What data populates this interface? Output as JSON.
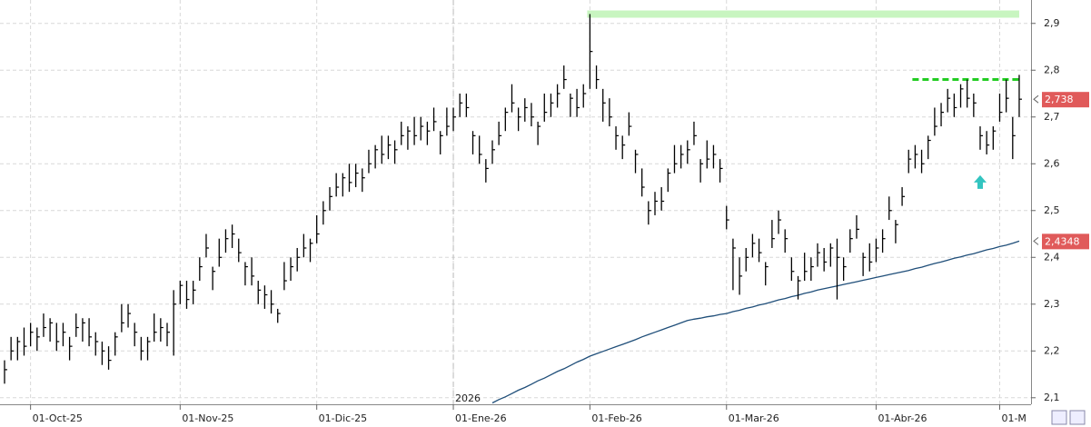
{
  "chart_data": {
    "type": "ohlc",
    "bar_color": "#000000",
    "grid": true,
    "ylim": [
      2.086,
      2.95
    ],
    "yticks": [
      {
        "value": 2.1,
        "label": "2,1"
      },
      {
        "value": 2.2,
        "label": "2,2"
      },
      {
        "value": 2.3,
        "label": "2,3"
      },
      {
        "value": 2.4,
        "label": "2,4"
      },
      {
        "value": 2.5,
        "label": "2,5"
      },
      {
        "value": 2.6,
        "label": "2,6"
      },
      {
        "value": 2.7,
        "label": "2,7"
      },
      {
        "value": 2.8,
        "label": "2,8"
      },
      {
        "value": 2.9,
        "label": "2,9"
      }
    ],
    "xticks": [
      {
        "value": 4,
        "label": "01-Oct-25"
      },
      {
        "value": 27,
        "label": "01-Nov-25"
      },
      {
        "value": 48,
        "label": "01-Dic-25"
      },
      {
        "value": 69,
        "label": "01-Ene-26"
      },
      {
        "value": 90,
        "label": "01-Feb-26"
      },
      {
        "value": 111,
        "label": "01-Mar-26"
      },
      {
        "value": 134,
        "label": "01-Abr-26"
      },
      {
        "value": 153,
        "label": "01-M"
      }
    ],
    "year_marker": {
      "value": 69,
      "label": "2026"
    },
    "high": [
      2.18,
      2.23,
      2.23,
      2.25,
      2.26,
      2.25,
      2.28,
      2.27,
      2.26,
      2.26,
      2.23,
      2.28,
      2.27,
      2.27,
      2.24,
      2.22,
      2.21,
      2.24,
      2.3,
      2.3,
      2.26,
      2.23,
      2.23,
      2.28,
      2.27,
      2.26,
      2.33,
      2.35,
      2.35,
      2.35,
      2.4,
      2.45,
      2.38,
      2.44,
      2.46,
      2.47,
      2.44,
      2.39,
      2.4,
      2.35,
      2.34,
      2.33,
      2.29,
      2.39,
      2.4,
      2.42,
      2.45,
      2.44,
      2.49,
      2.52,
      2.55,
      2.58,
      2.58,
      2.6,
      2.6,
      2.59,
      2.63,
      2.64,
      2.66,
      2.66,
      2.65,
      2.69,
      2.68,
      2.7,
      2.7,
      2.69,
      2.72,
      2.67,
      2.72,
      2.72,
      2.75,
      2.75,
      2.67,
      2.66,
      2.61,
      2.65,
      2.69,
      2.72,
      2.77,
      2.72,
      2.74,
      2.73,
      2.69,
      2.75,
      2.75,
      2.77,
      2.81,
      2.75,
      2.76,
      2.77,
      2.92,
      2.81,
      2.76,
      2.74,
      2.68,
      2.66,
      2.71,
      2.63,
      2.59,
      2.52,
      2.54,
      2.55,
      2.59,
      2.64,
      2.64,
      2.65,
      2.69,
      2.61,
      2.65,
      2.64,
      2.61,
      2.51,
      2.44,
      2.4,
      2.42,
      2.45,
      2.44,
      2.39,
      2.48,
      2.5,
      2.46,
      2.4,
      2.36,
      2.41,
      2.4,
      2.43,
      2.42,
      2.43,
      2.44,
      2.4,
      2.46,
      2.49,
      2.41,
      2.43,
      2.44,
      2.46,
      2.53,
      2.48,
      2.55,
      2.63,
      2.64,
      2.63,
      2.66,
      2.72,
      2.73,
      2.76,
      2.75,
      2.77,
      2.78,
      2.75,
      2.68,
      2.67,
      2.68,
      2.75,
      2.78,
      2.7,
      2.79
    ],
    "low": [
      2.13,
      2.18,
      2.18,
      2.19,
      2.21,
      2.2,
      2.23,
      2.22,
      2.2,
      2.21,
      2.18,
      2.23,
      2.22,
      2.21,
      2.19,
      2.17,
      2.16,
      2.19,
      2.24,
      2.25,
      2.21,
      2.18,
      2.18,
      2.22,
      2.22,
      2.21,
      2.19,
      2.3,
      2.29,
      2.3,
      2.35,
      2.4,
      2.33,
      2.38,
      2.41,
      2.42,
      2.39,
      2.34,
      2.34,
      2.3,
      2.29,
      2.28,
      2.26,
      2.33,
      2.35,
      2.37,
      2.4,
      2.39,
      2.43,
      2.47,
      2.5,
      2.53,
      2.53,
      2.54,
      2.55,
      2.54,
      2.58,
      2.59,
      2.6,
      2.61,
      2.6,
      2.64,
      2.63,
      2.64,
      2.65,
      2.64,
      2.67,
      2.62,
      2.66,
      2.67,
      2.7,
      2.7,
      2.62,
      2.6,
      2.56,
      2.6,
      2.64,
      2.67,
      2.71,
      2.67,
      2.69,
      2.68,
      2.64,
      2.69,
      2.7,
      2.72,
      2.76,
      2.7,
      2.7,
      2.72,
      2.76,
      2.76,
      2.69,
      2.68,
      2.63,
      2.61,
      2.66,
      2.58,
      2.53,
      2.47,
      2.49,
      2.5,
      2.54,
      2.58,
      2.59,
      2.6,
      2.64,
      2.56,
      2.59,
      2.59,
      2.56,
      2.46,
      2.33,
      2.32,
      2.37,
      2.4,
      2.39,
      2.34,
      2.42,
      2.45,
      2.41,
      2.35,
      2.31,
      2.35,
      2.35,
      2.38,
      2.37,
      2.38,
      2.31,
      2.35,
      2.41,
      2.44,
      2.36,
      2.37,
      2.39,
      2.41,
      2.48,
      2.43,
      2.51,
      2.58,
      2.59,
      2.58,
      2.61,
      2.66,
      2.68,
      2.71,
      2.7,
      2.72,
      2.72,
      2.7,
      2.63,
      2.62,
      2.63,
      2.69,
      2.71,
      2.61,
      2.7
    ],
    "close": [
      2.16,
      2.2,
      2.22,
      2.21,
      2.24,
      2.23,
      2.25,
      2.26,
      2.22,
      2.24,
      2.21,
      2.25,
      2.26,
      2.23,
      2.22,
      2.2,
      2.18,
      2.23,
      2.26,
      2.28,
      2.24,
      2.2,
      2.22,
      2.24,
      2.25,
      2.24,
      2.3,
      2.34,
      2.31,
      2.33,
      2.38,
      2.42,
      2.37,
      2.4,
      2.44,
      2.45,
      2.41,
      2.38,
      2.36,
      2.33,
      2.32,
      2.3,
      2.28,
      2.35,
      2.38,
      2.4,
      2.42,
      2.43,
      2.45,
      2.5,
      2.53,
      2.55,
      2.57,
      2.56,
      2.58,
      2.57,
      2.6,
      2.63,
      2.62,
      2.64,
      2.63,
      2.66,
      2.67,
      2.66,
      2.68,
      2.67,
      2.69,
      2.66,
      2.68,
      2.7,
      2.73,
      2.72,
      2.66,
      2.62,
      2.59,
      2.63,
      2.66,
      2.71,
      2.73,
      2.7,
      2.72,
      2.7,
      2.68,
      2.71,
      2.73,
      2.75,
      2.78,
      2.74,
      2.72,
      2.75,
      2.84,
      2.78,
      2.73,
      2.7,
      2.66,
      2.64,
      2.68,
      2.62,
      2.55,
      2.5,
      2.52,
      2.52,
      2.58,
      2.6,
      2.62,
      2.63,
      2.66,
      2.6,
      2.61,
      2.62,
      2.59,
      2.48,
      2.42,
      2.36,
      2.4,
      2.43,
      2.41,
      2.38,
      2.44,
      2.48,
      2.44,
      2.37,
      2.35,
      2.37,
      2.38,
      2.41,
      2.39,
      2.42,
      2.4,
      2.38,
      2.44,
      2.46,
      2.4,
      2.39,
      2.42,
      2.44,
      2.5,
      2.47,
      2.53,
      2.61,
      2.62,
      2.6,
      2.65,
      2.68,
      2.71,
      2.74,
      2.72,
      2.76,
      2.74,
      2.73,
      2.66,
      2.64,
      2.67,
      2.71,
      2.74,
      2.66,
      2.738
    ],
    "moving_average": {
      "color": "#1f4e79",
      "values": [
        null,
        null,
        null,
        null,
        null,
        null,
        null,
        null,
        null,
        null,
        null,
        null,
        null,
        null,
        null,
        null,
        null,
        null,
        null,
        null,
        null,
        null,
        null,
        null,
        null,
        null,
        null,
        null,
        null,
        null,
        null,
        null,
        null,
        null,
        null,
        null,
        null,
        null,
        null,
        null,
        null,
        null,
        null,
        null,
        null,
        null,
        null,
        null,
        null,
        null,
        null,
        null,
        null,
        null,
        null,
        null,
        null,
        null,
        null,
        null,
        null,
        null,
        null,
        null,
        null,
        null,
        null,
        null,
        null,
        null,
        null,
        null,
        null,
        null,
        null,
        2.089,
        2.096,
        2.102,
        2.109,
        2.116,
        2.122,
        2.129,
        2.136,
        2.142,
        2.149,
        2.156,
        2.162,
        2.169,
        2.176,
        2.182,
        2.189,
        2.194,
        2.199,
        2.204,
        2.209,
        2.214,
        2.219,
        2.224,
        2.23,
        2.235,
        2.24,
        2.245,
        2.25,
        2.255,
        2.26,
        2.265,
        2.268,
        2.27,
        2.273,
        2.275,
        2.278,
        2.28,
        2.284,
        2.287,
        2.291,
        2.294,
        2.298,
        2.301,
        2.305,
        2.309,
        2.312,
        2.316,
        2.319,
        2.323,
        2.326,
        2.33,
        2.333,
        2.336,
        2.339,
        2.342,
        2.345,
        2.348,
        2.351,
        2.354,
        2.357,
        2.36,
        2.363,
        2.366,
        2.369,
        2.372,
        2.376,
        2.379,
        2.383,
        2.387,
        2.39,
        2.394,
        2.398,
        2.401,
        2.405,
        2.408,
        2.412,
        2.416,
        2.419,
        2.423,
        2.426,
        2.43,
        2.4348
      ]
    },
    "price_labels": [
      {
        "value": 2.738,
        "label": "2,738",
        "color": "#e05a5a"
      },
      {
        "value": 2.4348,
        "label": "2,4348",
        "color": "#e05a5a"
      }
    ],
    "hlines": [
      {
        "value": 2.92,
        "x0": 90,
        "x1": 156,
        "color": "#c8f5c0",
        "style": "solid"
      },
      {
        "value": 2.78,
        "x0": 140,
        "x1": 156,
        "color": "#22cc22",
        "style": "dashed"
      }
    ],
    "arrow": {
      "x": 150,
      "value": 2.56,
      "color": "#33c4c0"
    }
  }
}
